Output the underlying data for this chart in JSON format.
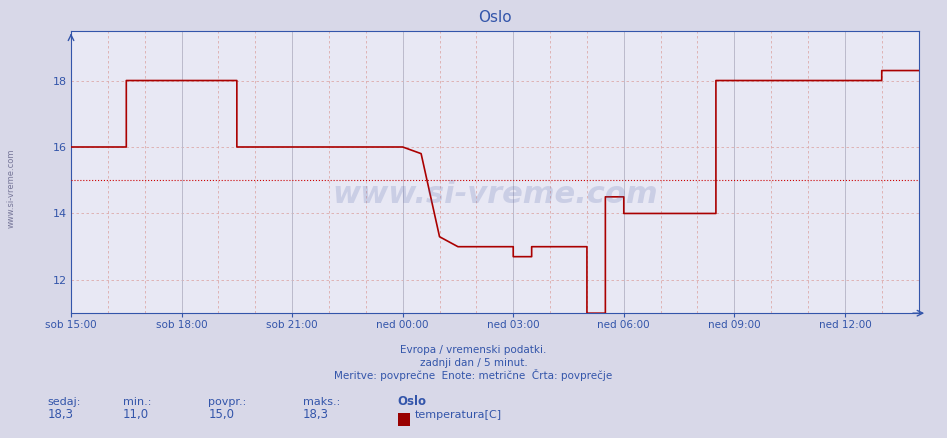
{
  "title": "Oslo",
  "bg_color": "#d8d8e8",
  "plot_bg_color": "#e8e8f4",
  "line_color": "#aa0000",
  "avg_line_color": "#cc0000",
  "avg_line_style": "dotted",
  "axis_color": "#3355aa",
  "text_color": "#3355aa",
  "avg_value": 15.0,
  "ymin": 11.0,
  "ymax": 19.5,
  "yticks": [
    12,
    14,
    16,
    18
  ],
  "footer_line1": "Evropa / vremenski podatki.",
  "footer_line2": "zadnji dan / 5 minut.",
  "footer_line3": "Meritve: povprečne  Enote: metrične  Črta: povprečje",
  "stat_sedaj": "18,3",
  "stat_min": "11,0",
  "stat_povpr": "15,0",
  "stat_maks": "18,3",
  "legend_city": "Oslo",
  "legend_label": "temperatura[C]",
  "watermark": "www.si-vreme.com",
  "ylabel_text": "www.si-vreme.com",
  "x_labels": [
    "sob 15:00",
    "sob 18:00",
    "sob 21:00",
    "ned 00:00",
    "ned 03:00",
    "ned 06:00",
    "ned 09:00",
    "ned 12:00"
  ],
  "x_tick_positions": [
    0,
    180,
    360,
    540,
    720,
    900,
    1080,
    1260
  ],
  "total_minutes": 1380,
  "data_x": [
    0,
    90,
    90,
    150,
    150,
    270,
    270,
    330,
    330,
    540,
    540,
    570,
    570,
    600,
    600,
    630,
    630,
    660,
    660,
    720,
    720,
    750,
    750,
    810,
    810,
    840,
    840,
    870,
    870,
    900,
    900,
    930,
    930,
    1050,
    1050,
    1080,
    1080,
    1260,
    1260,
    1320,
    1320,
    1380
  ],
  "data_y": [
    16.0,
    16.0,
    18.0,
    18.0,
    18.0,
    18.0,
    16.0,
    16.0,
    16.0,
    16.0,
    16.0,
    15.8,
    15.8,
    13.3,
    13.3,
    13.0,
    13.0,
    13.0,
    13.0,
    13.0,
    12.7,
    12.7,
    13.0,
    13.0,
    13.0,
    13.0,
    11.0,
    11.0,
    14.5,
    14.5,
    14.0,
    14.0,
    14.0,
    14.0,
    18.0,
    18.0,
    18.0,
    18.0,
    18.0,
    18.0,
    18.3,
    18.3
  ],
  "minor_grid_color": "#ddaaaa",
  "major_grid_color": "#bbbbcc",
  "minor_grid_every": 60,
  "major_grid_every": 180
}
